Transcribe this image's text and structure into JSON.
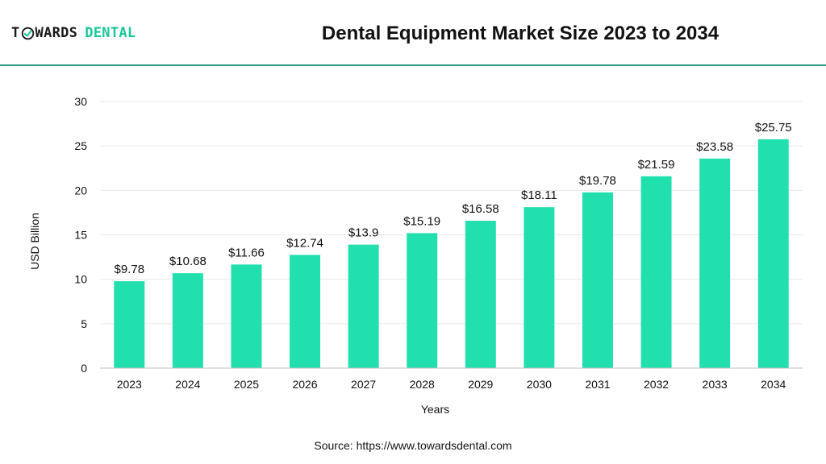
{
  "brand": {
    "logo_part_a": "T",
    "logo_part_b": "WARDS",
    "logo_part_c": "DENTAL"
  },
  "header": {
    "title": "Dental Equipment Market Size 2023 to 2034"
  },
  "colors": {
    "bar": "#22e0ad",
    "accent_rule": "#2e9a80",
    "brand_green": "#19c79b",
    "grid": "#e9e9e9",
    "axis": "#bfbfbf",
    "text": "#111111"
  },
  "chart_data": {
    "type": "bar",
    "title": "Dental Equipment Market Size 2023 to 2034",
    "xlabel": "Years",
    "ylabel": "USD Billion",
    "categories": [
      "2023",
      "2024",
      "2025",
      "2026",
      "2027",
      "2028",
      "2029",
      "2030",
      "2031",
      "2032",
      "2033",
      "2034"
    ],
    "values": [
      9.78,
      10.68,
      11.66,
      12.74,
      13.9,
      15.19,
      16.58,
      18.11,
      19.78,
      21.59,
      23.58,
      25.75
    ],
    "data_labels": [
      "$9.78",
      "$10.68",
      "$11.66",
      "$12.74",
      "$13.9",
      "$15.19",
      "$16.58",
      "$18.11",
      "$19.78",
      "$21.59",
      "$23.58",
      "$25.75"
    ],
    "ylim": [
      0,
      30
    ],
    "yticks": [
      0,
      5,
      10,
      15,
      20,
      25,
      30
    ],
    "grid": true,
    "legend": "none"
  },
  "footer": {
    "source_prefix": "Source:",
    "source_url": "https://www.towardsdental.com"
  }
}
